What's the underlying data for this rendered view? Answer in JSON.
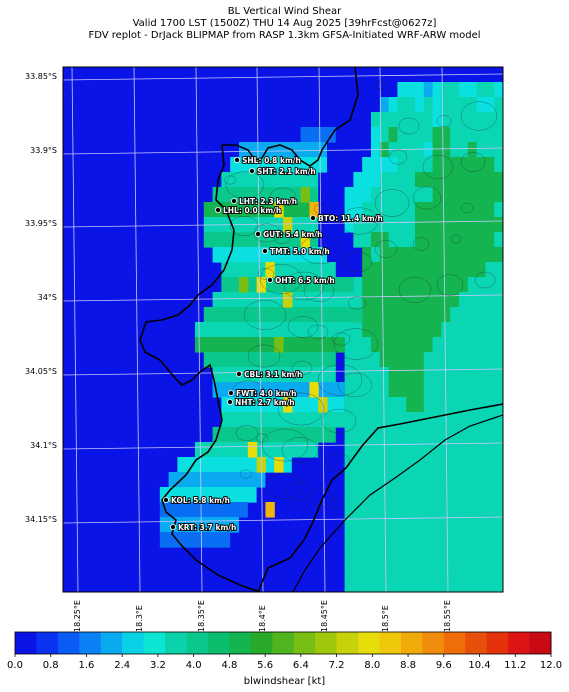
{
  "title": {
    "line1": "BL Vertical Wind Shear",
    "line2": "Valid 1700 LST (1500Z) THU 14 Aug 2025 [39hrFcst@0627z]",
    "line3": "FDV replot - DrJack BLIPMAP from RASP 1.3km GFSA-Initiated WRF-ARW model"
  },
  "axes": {
    "lat_ticks": [
      "33.85°S",
      "33.9°S",
      "33.95°S",
      "34°S",
      "34.05°S",
      "34.1°S",
      "34.15°S"
    ],
    "lon_ticks": [
      "18.25°E",
      "18.3°E",
      "18.35°E",
      "18.4°E",
      "18.45°E",
      "18.5°E",
      "18.55°E"
    ]
  },
  "stations": [
    {
      "code": "SHL",
      "label": "SHL: 0.8 km/h",
      "value": 0.8
    },
    {
      "code": "SHT",
      "label": "SHT: 2.1 km/h",
      "value": 2.1
    },
    {
      "code": "LHT",
      "label": "LHT: 2.3 km/h",
      "value": 2.3
    },
    {
      "code": "LHL",
      "label": "LHL: 0.0 km/h",
      "value": 0.0
    },
    {
      "code": "BTO",
      "label": "BTO: 11.4 km/h",
      "value": 11.4
    },
    {
      "code": "GUT",
      "label": "GUT: 5.4 km/h",
      "value": 5.4
    },
    {
      "code": "TMT",
      "label": "TMT: 5.0 km/h",
      "value": 5.0
    },
    {
      "code": "OHT",
      "label": "OHT: 6.5 km/h",
      "value": 6.5
    },
    {
      "code": "CBL",
      "label": "CBL: 3.1 km/h",
      "value": 3.1
    },
    {
      "code": "FWT",
      "label": "FWT: 4.0 km/h",
      "value": 4.0
    },
    {
      "code": "NHT",
      "label": "NHT: 2.7 km/h",
      "value": 2.7
    },
    {
      "code": "KOL",
      "label": "KOL: 5.8 km/h",
      "value": 5.8
    },
    {
      "code": "KRT",
      "label": "KRT: 3.7 km/h",
      "value": 3.7
    }
  ],
  "colorbar": {
    "title": "blwindshear [kt]",
    "labels": [
      "0.0",
      "0.8",
      "1.6",
      "2.4",
      "3.2",
      "4.0",
      "4.8",
      "5.6",
      "6.4",
      "7.2",
      "8.0",
      "8.8",
      "9.6",
      "10.4",
      "11.2",
      "12.0"
    ],
    "colors": [
      "#0a14e6",
      "#0a32f0",
      "#0a5af5",
      "#0a82f5",
      "#0aaaf0",
      "#0ad2e6",
      "#0ae6d2",
      "#0ad2aa",
      "#0ac88c",
      "#0abe6e",
      "#14b450",
      "#28aa28",
      "#50b41e",
      "#78be14",
      "#a0c80a",
      "#c8d20a",
      "#e6dc0a",
      "#f0c80a",
      "#f0aa0a",
      "#f08c0a",
      "#f06e0a",
      "#e6500a",
      "#e6320a",
      "#dc1414",
      "#c80a14"
    ]
  },
  "grid_values": {
    "colors": {
      "0": "#0a14e6",
      "1": "#0a3cf0",
      "2": "#0a6ef5",
      "3": "#0aaaf0",
      "4": "#0ae0e0",
      "5": "#0ad6b4",
      "6": "#0ac88c",
      "7": "#14b450",
      "8": "#32aa28",
      "9": "#78be14",
      "10": "#c8d20a",
      "11": "#e6dc0a",
      "12": "#f0b40a"
    },
    "rows": [
      "00000000000000000000000000000000000000000000000000",
      "00000000000000000000000000000000000000444345544554",
      "00000000000000000000000000000000000034554545555445",
      "00000000000000000000000000000000000555555545555555",
      "00000000000000000000000000000000000457555577555555",
      "00000000000000000000000000000000000475555477557555",
      "00000000000000000000000000000000004444555577777775",
      "00000000000000000000000000000000044455557777777777",
      "00000000000000000000000000000000444555555577777777",
      "00000000000000000000000000000000445555557777777775",
      "00000000000000000000000000000000455555557777777777",
      "00000000000000000000000000000000055775557777777775",
      "00000000000000000000000000000000007577777777777777",
      "00000000000000000000000000000000007777777777777755",
      "00000000000000000000000000000000057777777777775555",
      "00000000000000000000000000000000557777777777755555",
      "00000000000000000000000000000000557777777777555555",
      "00000000000000000000000000000000557777777775555555",
      "00000000000000000000000000000000555777777755555555",
      "00000000000000000000000000000000555577777555555555",
      "00000000000000000000000000000000555557777555555555",
      "00000000000000000000000000000000555557777555555555",
      "00000000000000000000000000000000555555577555555555",
      "00000000000000000000000000000000555555555555555555",
      "00000000000000000000000000000000555555555555555555",
      "00000000000000000000000000000000555555555555555555",
      "00000000000000000000000000000000555555555555555555",
      "00000000000000000000000000000000555555555555555555",
      "00000000000000000000000000000000555555555555555555",
      "00000000000000000000000000000000555555555555555555",
      "00000000000000000000000000000000555555555555555555",
      "00000000000000000000000000000000555555555555555555",
      "00000000000000000000000000000000555555555555555555",
      "00000000000000000000000000000000555555555555555555",
      "00000000000000000000000000000000555555555555555555"
    ]
  }
}
